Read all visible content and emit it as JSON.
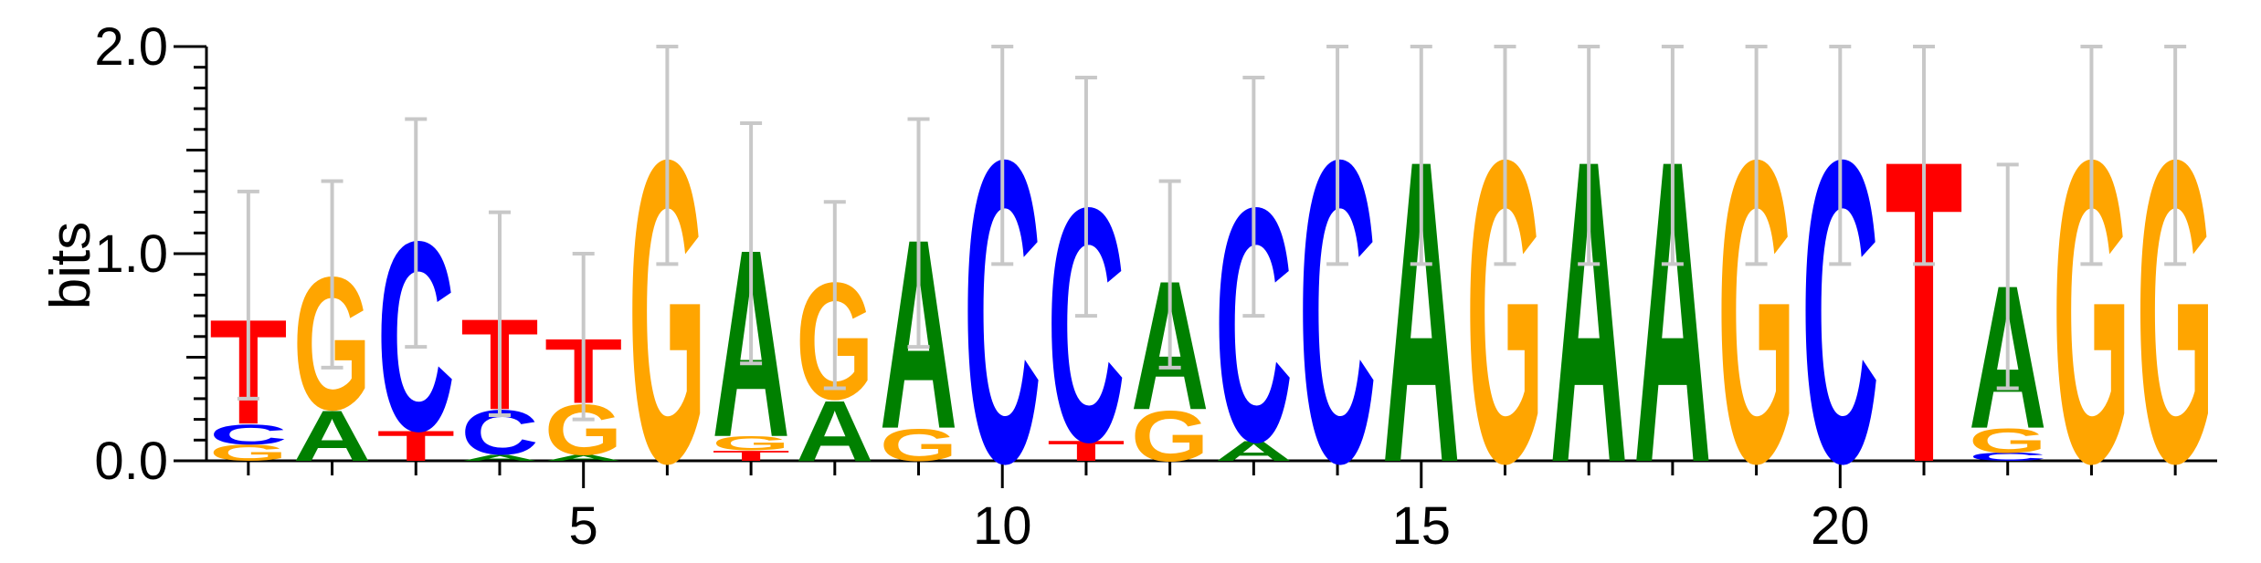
{
  "chart_data": {
    "type": "sequence-logo",
    "ylabel": "bits",
    "ylim": [
      0,
      2.0
    ],
    "y_ticks": [
      {
        "value": 0.0,
        "label": "0.0"
      },
      {
        "value": 1.0,
        "label": "1.0"
      },
      {
        "value": 2.0,
        "label": "2.0"
      }
    ],
    "x_range": [
      1,
      24
    ],
    "x_ticks": [
      {
        "value": 5,
        "label": "5"
      },
      {
        "value": 10,
        "label": "10"
      },
      {
        "value": 15,
        "label": "15"
      },
      {
        "value": 20,
        "label": "20"
      }
    ],
    "colors": {
      "A": "#008000",
      "C": "#0000ff",
      "G": "#ffa500",
      "T": "#ff0000",
      "error_bar": "#c8c8c8"
    },
    "positions": [
      {
        "pos": 1,
        "stack": [
          {
            "letter": "G",
            "height": 0.08
          },
          {
            "letter": "C",
            "height": 0.1
          },
          {
            "letter": "T",
            "height": 0.52
          }
        ],
        "error": [
          0.3,
          1.3
        ]
      },
      {
        "pos": 2,
        "stack": [
          {
            "letter": "A",
            "height": 0.25
          },
          {
            "letter": "G",
            "height": 0.66
          }
        ],
        "error": [
          0.45,
          1.35
        ]
      },
      {
        "pos": 3,
        "stack": [
          {
            "letter": "T",
            "height": 0.15
          },
          {
            "letter": "C",
            "height": 0.94
          }
        ],
        "error": [
          0.55,
          1.65
        ]
      },
      {
        "pos": 4,
        "stack": [
          {
            "letter": "A",
            "height": 0.03
          },
          {
            "letter": "C",
            "height": 0.22
          },
          {
            "letter": "T",
            "height": 0.45
          }
        ],
        "error": [
          0.22,
          1.2
        ]
      },
      {
        "pos": 5,
        "stack": [
          {
            "letter": "A",
            "height": 0.03
          },
          {
            "letter": "G",
            "height": 0.25
          },
          {
            "letter": "T",
            "height": 0.32
          }
        ],
        "error": [
          0.2,
          1.0
        ]
      },
      {
        "pos": 6,
        "stack": [
          {
            "letter": "G",
            "height": 1.5
          }
        ],
        "error": [
          0.95,
          2.0
        ]
      },
      {
        "pos": 7,
        "stack": [
          {
            "letter": "T",
            "height": 0.05
          },
          {
            "letter": "G",
            "height": 0.07
          },
          {
            "letter": "A",
            "height": 0.93
          }
        ],
        "error": [
          0.47,
          1.63
        ]
      },
      {
        "pos": 8,
        "stack": [
          {
            "letter": "A",
            "height": 0.3
          },
          {
            "letter": "G",
            "height": 0.58
          }
        ],
        "error": [
          0.35,
          1.25
        ]
      },
      {
        "pos": 9,
        "stack": [
          {
            "letter": "G",
            "height": 0.16
          },
          {
            "letter": "A",
            "height": 0.94
          }
        ],
        "error": [
          0.55,
          1.65
        ]
      },
      {
        "pos": 10,
        "stack": [
          {
            "letter": "C",
            "height": 1.5
          }
        ],
        "error": [
          0.95,
          2.0
        ]
      },
      {
        "pos": 11,
        "stack": [
          {
            "letter": "T",
            "height": 0.1
          },
          {
            "letter": "C",
            "height": 1.16
          }
        ],
        "error": [
          0.7,
          1.85
        ]
      },
      {
        "pos": 12,
        "stack": [
          {
            "letter": "G",
            "height": 0.25
          },
          {
            "letter": "A",
            "height": 0.64
          }
        ],
        "error": [
          0.45,
          1.35
        ]
      },
      {
        "pos": 13,
        "stack": [
          {
            "letter": "A",
            "height": 0.1
          },
          {
            "letter": "C",
            "height": 1.16
          }
        ],
        "error": [
          0.7,
          1.85
        ]
      },
      {
        "pos": 14,
        "stack": [
          {
            "letter": "C",
            "height": 1.5
          }
        ],
        "error": [
          0.95,
          2.0
        ]
      },
      {
        "pos": 15,
        "stack": [
          {
            "letter": "A",
            "height": 1.5
          }
        ],
        "error": [
          0.95,
          2.0
        ]
      },
      {
        "pos": 16,
        "stack": [
          {
            "letter": "G",
            "height": 1.5
          }
        ],
        "error": [
          0.95,
          2.0
        ]
      },
      {
        "pos": 17,
        "stack": [
          {
            "letter": "A",
            "height": 1.5
          }
        ],
        "error": [
          0.95,
          2.0
        ]
      },
      {
        "pos": 18,
        "stack": [
          {
            "letter": "A",
            "height": 1.5
          }
        ],
        "error": [
          0.95,
          2.0
        ]
      },
      {
        "pos": 19,
        "stack": [
          {
            "letter": "G",
            "height": 1.5
          }
        ],
        "error": [
          0.95,
          2.0
        ]
      },
      {
        "pos": 20,
        "stack": [
          {
            "letter": "C",
            "height": 1.5
          }
        ],
        "error": [
          0.95,
          2.0
        ]
      },
      {
        "pos": 21,
        "stack": [
          {
            "letter": "T",
            "height": 1.5
          }
        ],
        "error": [
          0.95,
          2.0
        ]
      },
      {
        "pos": 22,
        "stack": [
          {
            "letter": "C",
            "height": 0.04
          },
          {
            "letter": "G",
            "height": 0.12
          },
          {
            "letter": "A",
            "height": 0.71
          }
        ],
        "error": [
          0.35,
          1.43
        ]
      },
      {
        "pos": 23,
        "stack": [
          {
            "letter": "G",
            "height": 1.5
          }
        ],
        "error": [
          0.95,
          2.0
        ]
      },
      {
        "pos": 24,
        "stack": [
          {
            "letter": "G",
            "height": 1.5
          }
        ],
        "error": [
          0.95,
          2.0
        ]
      }
    ]
  }
}
